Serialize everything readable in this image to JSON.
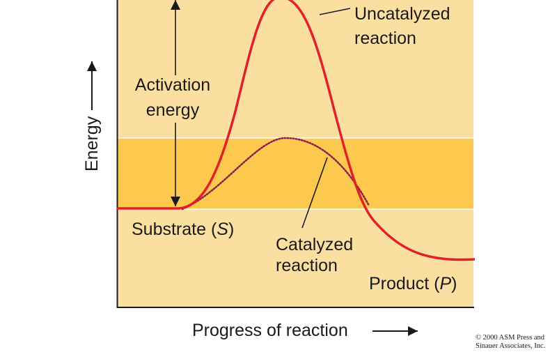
{
  "labels": {
    "uncatalyzed_line1": "Uncatalyzed",
    "uncatalyzed_line2": "reaction",
    "activation_line1": "Activation",
    "activation_line2": "energy",
    "substrate_text": "Substrate (",
    "substrate_symbol": "S",
    "substrate_close": ")",
    "catalyzed_line1": "Catalyzed",
    "catalyzed_line2": "reaction",
    "product_text": "Product (",
    "product_symbol": "P",
    "product_close": ")",
    "y_axis": "Energy",
    "x_axis": "Progress of reaction"
  },
  "copyright": {
    "line1": "© 2000 ASM Press and",
    "line2": "Sinauer Associates, Inc."
  },
  "colors": {
    "background_light": "#fbdfa0",
    "band": "#fdc84e",
    "uncatalyzed_curve": "#e2202a",
    "catalyzed_curve": "#8b1f4b",
    "axis": "#1a1a1a"
  }
}
